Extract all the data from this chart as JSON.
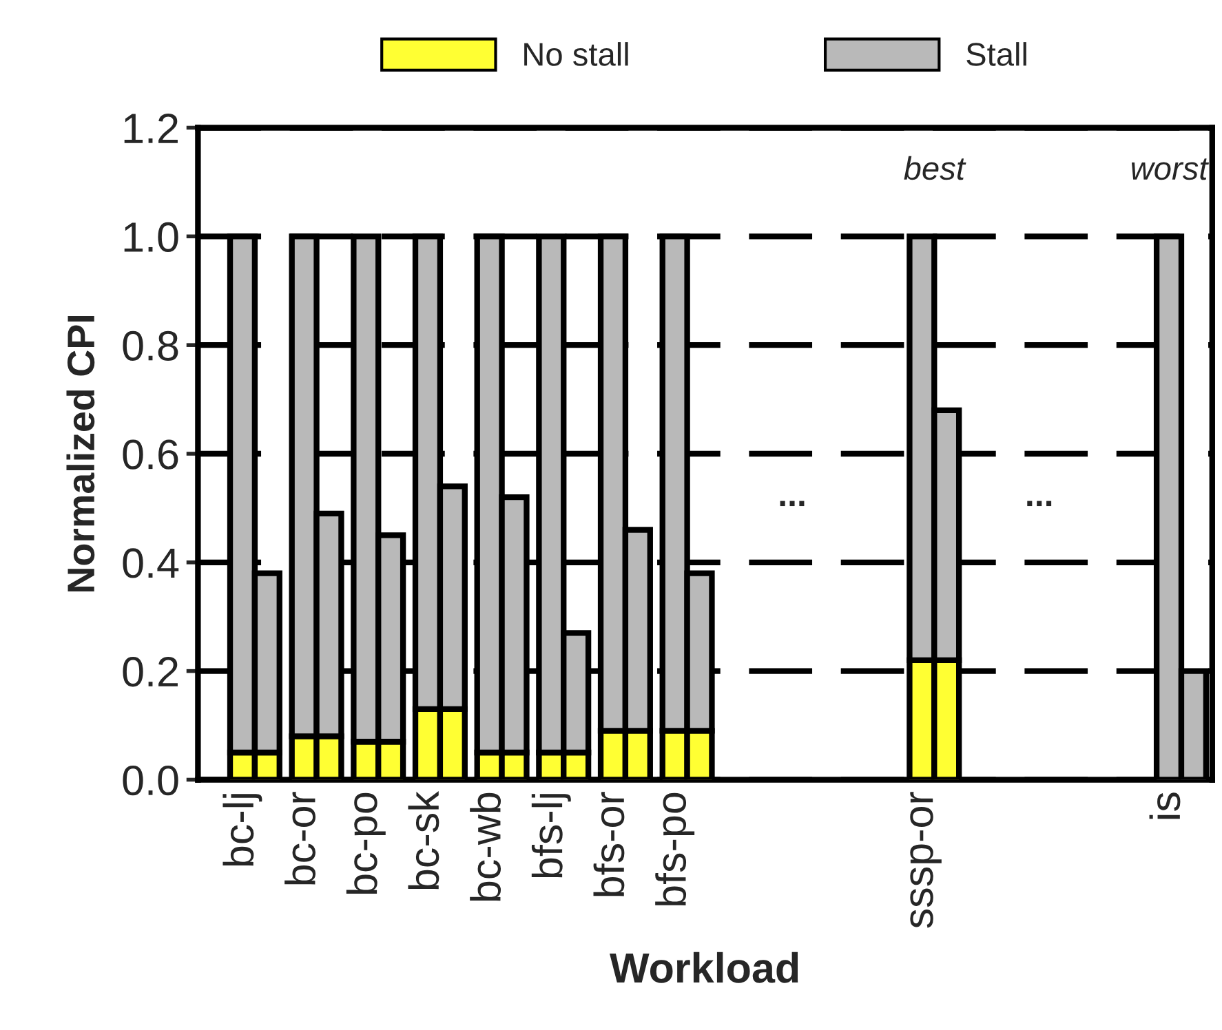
{
  "chart_data": {
    "type": "bar",
    "stacked": true,
    "categories": [
      "bc-lj",
      null,
      "bc-or",
      null,
      "bc-po",
      null,
      "bc-sk",
      null,
      "bc-wb",
      null,
      "bfs-lj",
      null,
      "bfs-or",
      null,
      "bfs-po",
      null,
      null,
      null,
      null,
      null,
      null,
      null,
      "sssp-or",
      null,
      null,
      null,
      null,
      null,
      null,
      null,
      "is",
      null
    ],
    "series": [
      {
        "name": "No stall",
        "color": "#ffff33",
        "values": [
          0.05,
          0.05,
          0.08,
          0.08,
          0.07,
          0.07,
          0.13,
          0.13,
          0.05,
          0.05,
          0.05,
          0.05,
          0.09,
          0.09,
          0.09,
          0.09,
          null,
          null,
          null,
          null,
          null,
          null,
          0.22,
          0.22,
          null,
          null,
          null,
          null,
          null,
          null,
          null,
          null
        ]
      },
      {
        "name": "Stall",
        "color": "#b9b9b9",
        "values": [
          0.95,
          0.33,
          0.92,
          0.41,
          0.93,
          0.38,
          0.87,
          0.41,
          0.95,
          0.47,
          0.95,
          0.22,
          0.91,
          0.37,
          0.91,
          0.29,
          null,
          null,
          null,
          null,
          null,
          null,
          0.78,
          0.46,
          null,
          null,
          null,
          null,
          null,
          null,
          1.0,
          0.2
        ]
      }
    ],
    "xlabel": "Workload",
    "ylabel": "Normalized CPI",
    "ylim": [
      0,
      1.2
    ],
    "yticks": [
      {
        "value": 0,
        "label": "0.0"
      },
      {
        "value": 0.2,
        "label": "0.2"
      },
      {
        "value": 0.4,
        "label": "0.4"
      },
      {
        "value": 0.6,
        "label": "0.6"
      },
      {
        "value": 0.8,
        "label": "0.8"
      },
      {
        "value": 1,
        "label": "1.0"
      },
      {
        "value": 1.2,
        "label": "1.2"
      }
    ],
    "grid": "y",
    "legend": "top",
    "annotations": [
      "...",
      "...",
      "best",
      "worst"
    ]
  }
}
